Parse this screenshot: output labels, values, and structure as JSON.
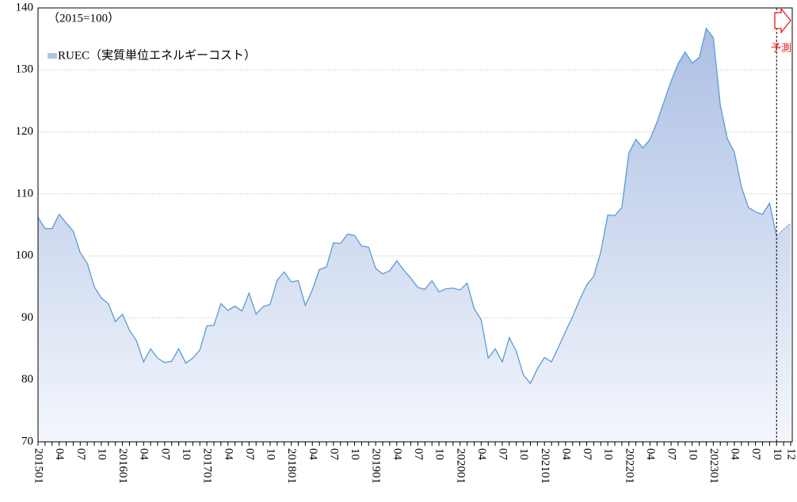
{
  "chart_data": {
    "type": "area",
    "annotations": {
      "base": "（2015=100）",
      "forecast": "予測"
    },
    "categories": [
      "201501",
      null,
      null,
      "04",
      null,
      null,
      "07",
      null,
      null,
      "10",
      null,
      null,
      "201601",
      null,
      null,
      "04",
      null,
      null,
      "07",
      null,
      null,
      "10",
      null,
      null,
      "201701",
      null,
      null,
      "04",
      null,
      null,
      "07",
      null,
      null,
      "10",
      null,
      null,
      "201801",
      null,
      null,
      "04",
      null,
      null,
      "07",
      null,
      null,
      "10",
      null,
      null,
      "201901",
      null,
      null,
      "04",
      null,
      null,
      "07",
      null,
      null,
      "10",
      null,
      null,
      "202001",
      null,
      null,
      "04",
      null,
      null,
      "07",
      null,
      null,
      "10",
      null,
      null,
      "202101",
      null,
      null,
      "04",
      null,
      null,
      "07",
      null,
      null,
      "10",
      null,
      null,
      "202201",
      null,
      null,
      "04",
      null,
      null,
      "07",
      null,
      null,
      "10",
      null,
      null,
      "202301",
      null,
      null,
      "04",
      null,
      null,
      "07",
      null,
      null,
      "10",
      null,
      "12"
    ],
    "series": [
      {
        "name": "RUEC（実質単位エネルギーコスト）",
        "color": "#5b9bd5",
        "fill": "#a9bde3",
        "values": [
          106.2,
          104.4,
          104.4,
          106.7,
          105.3,
          104.0,
          100.5,
          98.8,
          95.0,
          93.2,
          92.3,
          89.4,
          90.6,
          88.0,
          86.3,
          82.9,
          85.0,
          83.5,
          82.8,
          83.0,
          85.0,
          82.7,
          83.5,
          84.8,
          88.7,
          88.8,
          92.3,
          91.2,
          91.9,
          91.1,
          94.0,
          90.6,
          91.8,
          92.2,
          96.1,
          97.4,
          95.8,
          96.0,
          92.0,
          94.5,
          97.8,
          98.2,
          102.1,
          102.0,
          103.5,
          103.3,
          101.6,
          101.4,
          98.0,
          97.1,
          97.6,
          99.2,
          97.7,
          96.4,
          94.9,
          94.6,
          96.0,
          94.2,
          94.7,
          94.8,
          94.5,
          95.6,
          91.5,
          89.7,
          83.5,
          85.0,
          82.9,
          86.8,
          84.6,
          80.8,
          79.4,
          81.8,
          83.6,
          82.9,
          85.3,
          87.8,
          90.2,
          92.9,
          95.3,
          96.7,
          100.6,
          106.6,
          106.5,
          107.8,
          116.6,
          118.8,
          117.4,
          118.8,
          121.6,
          124.9,
          128.2,
          131.0,
          132.9,
          131.1,
          132.0,
          136.7,
          135.2,
          124.3,
          118.9,
          116.7,
          111.1,
          107.8,
          107.1,
          106.7,
          108.5,
          103.2,
          null,
          null
        ]
      },
      {
        "name": "予測",
        "color": "#5b9bd5",
        "fill": "#a9bde3",
        "values": [
          null,
          null,
          null,
          null,
          null,
          null,
          null,
          null,
          null,
          null,
          null,
          null,
          null,
          null,
          null,
          null,
          null,
          null,
          null,
          null,
          null,
          null,
          null,
          null,
          null,
          null,
          null,
          null,
          null,
          null,
          null,
          null,
          null,
          null,
          null,
          null,
          null,
          null,
          null,
          null,
          null,
          null,
          null,
          null,
          null,
          null,
          null,
          null,
          null,
          null,
          null,
          null,
          null,
          null,
          null,
          null,
          null,
          null,
          null,
          null,
          null,
          null,
          null,
          null,
          null,
          null,
          null,
          null,
          null,
          null,
          null,
          null,
          null,
          null,
          null,
          null,
          null,
          null,
          null,
          null,
          null,
          null,
          null,
          null,
          null,
          null,
          null,
          null,
          null,
          null,
          null,
          null,
          null,
          null,
          null,
          null,
          null,
          null,
          null,
          null,
          null,
          null,
          null,
          null,
          null,
          103.2,
          104.3,
          105.3
        ]
      }
    ],
    "ylim": [
      70,
      140
    ],
    "yticks": [
      70,
      80,
      90,
      100,
      110,
      120,
      130,
      140
    ],
    "grid": true
  }
}
